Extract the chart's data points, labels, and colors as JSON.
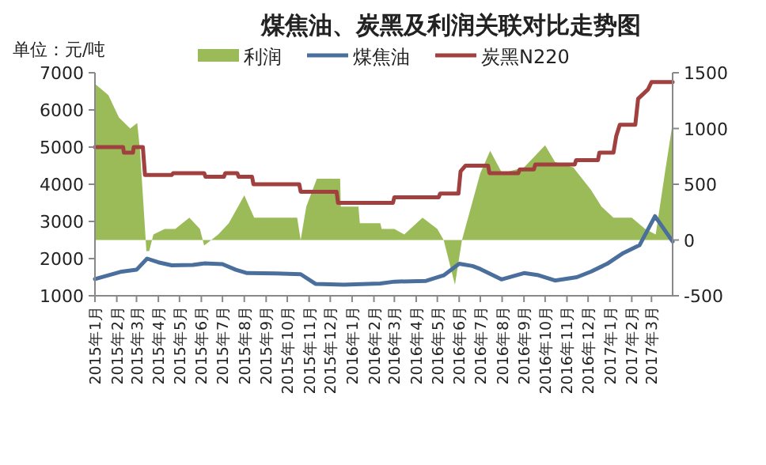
{
  "chart_data": {
    "type": "line",
    "title": "煤焦油、炭黑及利润关联对比走势图",
    "ylabel": "单位：元/吨",
    "xlim": [
      "2015-01-01",
      "2017-03-31"
    ],
    "xticks": [
      {
        "value": "2015-01-01",
        "label": "2015年1月"
      },
      {
        "value": "2015-02-01",
        "label": "2015年2月"
      },
      {
        "value": "2015-03-01",
        "label": "2015年3月"
      },
      {
        "value": "2015-04-01",
        "label": "2015年4月"
      },
      {
        "value": "2015-05-01",
        "label": "2015年5月"
      },
      {
        "value": "2015-06-01",
        "label": "2015年6月"
      },
      {
        "value": "2015-07-01",
        "label": "2015年7月"
      },
      {
        "value": "2015-08-01",
        "label": "2015年8月"
      },
      {
        "value": "2015-09-01",
        "label": "2015年9月"
      },
      {
        "value": "2015-10-01",
        "label": "2015年10月"
      },
      {
        "value": "2015-11-01",
        "label": "2015年11月"
      },
      {
        "value": "2015-12-01",
        "label": "2015年12月"
      },
      {
        "value": "2016-01-01",
        "label": "2016年1月"
      },
      {
        "value": "2016-02-01",
        "label": "2016年2月"
      },
      {
        "value": "2016-03-01",
        "label": "2016年3月"
      },
      {
        "value": "2016-04-01",
        "label": "2016年4月"
      },
      {
        "value": "2016-05-01",
        "label": "2016年5月"
      },
      {
        "value": "2016-06-01",
        "label": "2016年6月"
      },
      {
        "value": "2016-07-01",
        "label": "2016年7月"
      },
      {
        "value": "2016-08-01",
        "label": "2016年8月"
      },
      {
        "value": "2016-09-01",
        "label": "2016年9月"
      },
      {
        "value": "2016-10-01",
        "label": "2016年10月"
      },
      {
        "value": "2016-11-01",
        "label": "2016年11月"
      },
      {
        "value": "2016-12-01",
        "label": "2016年12月"
      },
      {
        "value": "2017-01-01",
        "label": "2017年1月"
      },
      {
        "value": "2017-02-01",
        "label": "2017年2月"
      },
      {
        "value": "2017-03-01",
        "label": "2017年3月"
      }
    ],
    "ylim": [
      1000,
      7000
    ],
    "yticks": [
      1000,
      2000,
      3000,
      4000,
      5000,
      6000,
      7000
    ],
    "y2lim": [
      -500,
      1500
    ],
    "y2ticks": [
      -500,
      0,
      500,
      1000,
      1500
    ],
    "grid": false,
    "legend": "top",
    "marker": "none",
    "series": [
      {
        "name": "利润",
        "type": "area",
        "axis": "y2",
        "color": "#9bbb59",
        "x": [
          "2015-01-01",
          "2015-01-20",
          "2015-02-04",
          "2015-02-20",
          "2015-03-02",
          "2015-03-06",
          "2015-03-15",
          "2015-03-19",
          "2015-03-25",
          "2015-04-10",
          "2015-04-25",
          "2015-05-15",
          "2015-05-30",
          "2015-06-05",
          "2015-06-25",
          "2015-07-10",
          "2015-08-01",
          "2015-08-15",
          "2015-10-15",
          "2015-10-20",
          "2015-10-28",
          "2015-11-12",
          "2015-12-15",
          "2015-12-16",
          "2016-01-10",
          "2016-01-12",
          "2016-02-10",
          "2016-02-12",
          "2016-03-01",
          "2016-03-15",
          "2016-04-10",
          "2016-05-01",
          "2016-05-10",
          "2016-05-26",
          "2016-06-05",
          "2016-07-01",
          "2016-07-15",
          "2016-08-01",
          "2016-09-01",
          "2016-10-01",
          "2016-10-15",
          "2016-11-10",
          "2016-12-05",
          "2016-12-20",
          "2017-01-06",
          "2017-02-01",
          "2017-02-20",
          "2017-03-07",
          "2017-03-20",
          "2017-03-31"
        ],
        "values": [
          1400,
          1300,
          1100,
          1000,
          1050,
          800,
          -100,
          -100,
          50,
          100,
          100,
          200,
          100,
          -50,
          50,
          150,
          400,
          200,
          200,
          0,
          300,
          550,
          550,
          300,
          300,
          150,
          150,
          100,
          100,
          50,
          200,
          100,
          0,
          -400,
          0,
          600,
          800,
          600,
          650,
          850,
          700,
          650,
          450,
          300,
          200,
          200,
          100,
          50,
          600,
          1050
        ]
      },
      {
        "name": "煤焦油",
        "axis": "y",
        "color": "#4a6f9c",
        "line_style": "solid",
        "x": [
          "2015-01-01",
          "2015-01-20",
          "2015-02-08",
          "2015-03-01",
          "2015-03-16",
          "2015-04-01",
          "2015-04-20",
          "2015-05-20",
          "2015-06-05",
          "2015-07-01",
          "2015-07-20",
          "2015-08-05",
          "2015-09-15",
          "2015-10-20",
          "2015-11-10",
          "2015-12-20",
          "2016-02-10",
          "2016-03-01",
          "2016-04-15",
          "2016-05-10",
          "2016-06-01",
          "2016-06-20",
          "2016-07-01",
          "2016-07-31",
          "2016-09-01",
          "2016-09-20",
          "2016-10-15",
          "2016-11-15",
          "2016-12-05",
          "2016-12-28",
          "2017-01-20",
          "2017-02-12",
          "2017-03-06",
          "2017-03-31"
        ],
        "values": [
          1450,
          1550,
          1650,
          1700,
          2000,
          1900,
          1820,
          1830,
          1870,
          1850,
          1700,
          1610,
          1600,
          1580,
          1320,
          1300,
          1330,
          1380,
          1400,
          1550,
          1860,
          1800,
          1720,
          1440,
          1610,
          1560,
          1410,
          1500,
          1650,
          1860,
          2150,
          2360,
          3140,
          2460
        ]
      },
      {
        "name": "炭黑N220",
        "axis": "y",
        "color": "#a0403f",
        "line_style": "solid",
        "x": [
          "2015-01-01",
          "2015-02-10",
          "2015-02-11",
          "2015-02-24",
          "2015-02-25",
          "2015-03-10",
          "2015-03-13",
          "2015-04-20",
          "2015-04-22",
          "2015-06-05",
          "2015-06-07",
          "2015-07-03",
          "2015-07-05",
          "2015-07-22",
          "2015-07-24",
          "2015-08-12",
          "2015-08-14",
          "2015-10-18",
          "2015-10-20",
          "2015-12-10",
          "2015-12-12",
          "2016-02-28",
          "2016-03-01",
          "2016-05-03",
          "2016-05-05",
          "2016-05-31",
          "2016-06-03",
          "2016-06-10",
          "2016-07-12",
          "2016-07-14",
          "2016-08-24",
          "2016-08-26",
          "2016-09-15",
          "2016-09-17",
          "2016-11-12",
          "2016-11-14",
          "2016-12-15",
          "2016-12-17",
          "2017-01-06",
          "2017-01-10",
          "2017-01-15",
          "2017-02-06",
          "2017-02-10",
          "2017-02-24",
          "2017-03-01",
          "2017-03-31"
        ],
        "values": [
          5000,
          5000,
          4850,
          4850,
          5000,
          5000,
          4250,
          4250,
          4300,
          4300,
          4200,
          4200,
          4300,
          4300,
          4200,
          4200,
          4000,
          4000,
          3800,
          3800,
          3500,
          3500,
          3650,
          3650,
          3750,
          3750,
          4350,
          4500,
          4500,
          4300,
          4300,
          4400,
          4400,
          4530,
          4530,
          4650,
          4650,
          4850,
          4850,
          5300,
          5600,
          5600,
          6300,
          6550,
          6750,
          6750
        ]
      }
    ]
  }
}
